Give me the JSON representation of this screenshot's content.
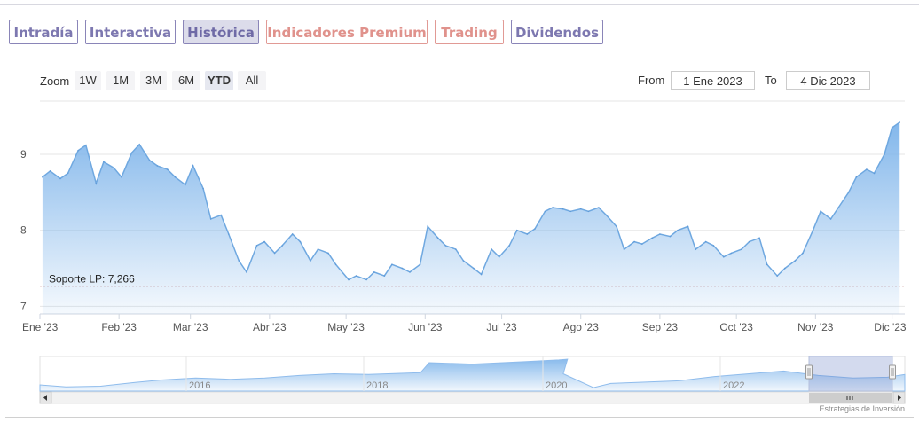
{
  "tabs": [
    {
      "label": "Intradía",
      "active": false,
      "accent": "#7d78b0"
    },
    {
      "label": "Interactiva",
      "active": false,
      "accent": "#7d78b0"
    },
    {
      "label": "Histórica",
      "active": true,
      "accent": "#7d78b0"
    },
    {
      "label": "Indicadores Premium",
      "active": false,
      "accent": "#e0928c"
    },
    {
      "label": "Trading",
      "active": false,
      "accent": "#e0928c"
    },
    {
      "label": "Dividendos",
      "active": false,
      "accent": "#7d78b0"
    }
  ],
  "zoom": {
    "label": "Zoom",
    "buttons": [
      "1W",
      "1M",
      "3M",
      "6M",
      "YTD",
      "All"
    ],
    "selected": "YTD"
  },
  "range": {
    "from_label": "From",
    "from_value": "1 Ene 2023",
    "to_label": "To",
    "to_value": "4 Dic 2023"
  },
  "chart_data": {
    "type": "area",
    "x_tick_labels": [
      "Ene '23",
      "Feb '23",
      "Mar '23",
      "Abr '23",
      "May '23",
      "Jun '23",
      "Jul '23",
      "Ago '23",
      "Sep '23",
      "Oct '23",
      "Nov '23",
      "Dic '23"
    ],
    "y_tick_labels": [
      "7",
      "8",
      "9"
    ],
    "ylim": [
      6.9,
      9.7
    ],
    "grid": true,
    "series": [
      {
        "x": [
          "2023-01-02",
          "2023-01-05",
          "2023-01-09",
          "2023-01-12",
          "2023-01-16",
          "2023-01-19",
          "2023-01-23",
          "2023-01-26",
          "2023-01-30",
          "2023-02-02",
          "2023-02-06",
          "2023-02-09",
          "2023-02-13",
          "2023-02-16",
          "2023-02-20",
          "2023-02-23",
          "2023-02-27",
          "2023-03-02",
          "2023-03-06",
          "2023-03-09",
          "2023-03-13",
          "2023-03-16",
          "2023-03-20",
          "2023-03-23",
          "2023-03-27",
          "2023-03-30",
          "2023-04-03",
          "2023-04-06",
          "2023-04-10",
          "2023-04-13",
          "2023-04-17",
          "2023-04-20",
          "2023-04-24",
          "2023-04-27",
          "2023-05-02",
          "2023-05-05",
          "2023-05-09",
          "2023-05-12",
          "2023-05-16",
          "2023-05-19",
          "2023-05-23",
          "2023-05-26",
          "2023-05-30",
          "2023-06-02",
          "2023-06-06",
          "2023-06-09",
          "2023-06-13",
          "2023-06-16",
          "2023-06-20",
          "2023-06-23",
          "2023-06-27",
          "2023-06-30",
          "2023-07-04",
          "2023-07-07",
          "2023-07-11",
          "2023-07-14",
          "2023-07-18",
          "2023-07-21",
          "2023-07-25",
          "2023-07-28",
          "2023-08-01",
          "2023-08-04",
          "2023-08-08",
          "2023-08-11",
          "2023-08-15",
          "2023-08-18",
          "2023-08-22",
          "2023-08-25",
          "2023-08-29",
          "2023-09-01",
          "2023-09-05",
          "2023-09-08",
          "2023-09-12",
          "2023-09-15",
          "2023-09-19",
          "2023-09-22",
          "2023-09-26",
          "2023-09-29",
          "2023-10-03",
          "2023-10-06",
          "2023-10-10",
          "2023-10-13",
          "2023-10-17",
          "2023-10-20",
          "2023-10-24",
          "2023-10-27",
          "2023-10-31",
          "2023-11-03",
          "2023-11-07",
          "2023-11-10",
          "2023-11-14",
          "2023-11-17",
          "2023-11-21",
          "2023-11-24",
          "2023-11-28",
          "2023-12-01",
          "2023-12-04"
        ],
        "values": [
          8.7,
          8.78,
          8.68,
          8.75,
          9.05,
          9.12,
          8.62,
          8.9,
          8.82,
          8.7,
          9.02,
          9.13,
          8.92,
          8.85,
          8.8,
          8.7,
          8.6,
          8.85,
          8.55,
          8.15,
          8.2,
          7.95,
          7.6,
          7.45,
          7.8,
          7.85,
          7.7,
          7.8,
          7.95,
          7.85,
          7.6,
          7.75,
          7.7,
          7.55,
          7.35,
          7.4,
          7.35,
          7.45,
          7.4,
          7.55,
          7.5,
          7.45,
          7.55,
          8.05,
          7.9,
          7.8,
          7.75,
          7.6,
          7.5,
          7.42,
          7.75,
          7.65,
          7.8,
          8.0,
          7.95,
          8.02,
          8.25,
          8.3,
          8.28,
          8.25,
          8.28,
          8.25,
          8.3,
          8.2,
          8.05,
          7.75,
          7.85,
          7.82,
          7.9,
          7.95,
          7.92,
          8.0,
          8.05,
          7.75,
          7.85,
          7.8,
          7.65,
          7.7,
          7.75,
          7.85,
          7.9,
          7.55,
          7.4,
          7.5,
          7.6,
          7.7,
          8.0,
          8.25,
          8.15,
          8.3,
          8.5,
          8.7,
          8.8,
          8.75,
          9.0,
          9.35,
          9.42
        ]
      }
    ],
    "support_line": {
      "label": "Soporte LP: 7,266",
      "value": 7.266
    },
    "navigator_tick_labels": [
      "2016",
      "2018",
      "2020",
      "2022"
    ]
  },
  "credit": "Estrategias de Inversión"
}
